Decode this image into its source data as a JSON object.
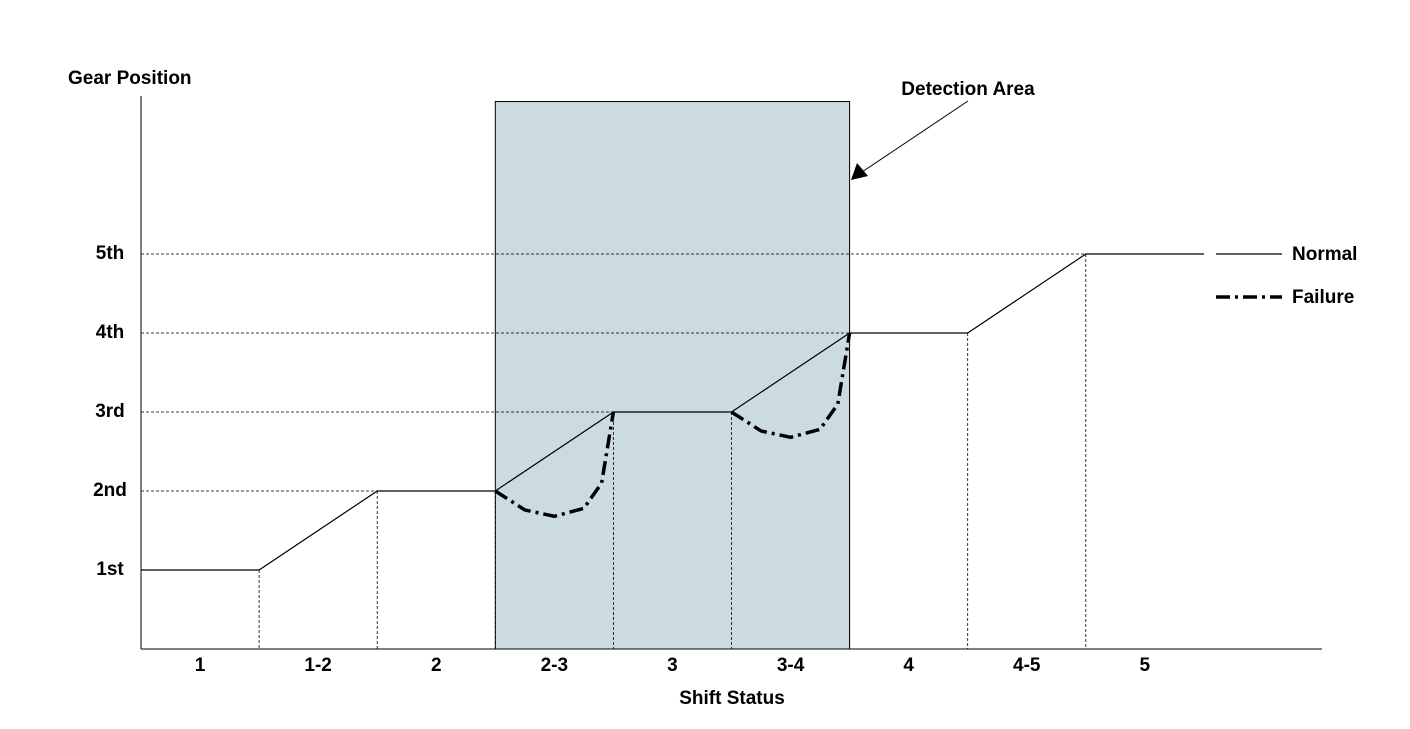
{
  "chart_data": {
    "type": "line",
    "y_label": "Gear Position",
    "x_label": "Shift Status",
    "categories": [
      "1",
      "1-2",
      "2",
      "2-3",
      "3",
      "3-4",
      "4",
      "4-5",
      "5"
    ],
    "xlim": [
      0,
      10
    ],
    "ylim": [
      0,
      7
    ],
    "yticks": [
      {
        "value": 1,
        "label": "1st"
      },
      {
        "value": 2,
        "label": "2nd"
      },
      {
        "value": 3,
        "label": "3rd"
      },
      {
        "value": 4,
        "label": "4th"
      },
      {
        "value": 5,
        "label": "5th"
      }
    ],
    "series": [
      {
        "name": "Normal",
        "color": "#000000",
        "style": "solid",
        "x": [
          0,
          1,
          2,
          3,
          4,
          5,
          6,
          7,
          8,
          9
        ],
        "values": [
          1,
          1,
          2,
          2,
          3,
          3,
          4,
          4,
          5,
          5
        ]
      },
      {
        "name": "Failure",
        "color": "#000000",
        "style": "dashdot",
        "x": [
          3,
          3.25,
          3.5,
          3.75,
          3.9,
          4,
          4.5,
          5,
          5.25,
          5.5,
          5.75,
          5.9,
          6
        ],
        "values": [
          2,
          1.76,
          1.68,
          1.78,
          2.1,
          3,
          null,
          3,
          2.76,
          2.68,
          2.78,
          3.1,
          4
        ]
      }
    ],
    "highlight": {
      "label": "Detection Area",
      "color": "#ccdae1",
      "x": [
        3,
        6
      ],
      "y": [
        0,
        6.93
      ]
    },
    "legend": "right"
  }
}
